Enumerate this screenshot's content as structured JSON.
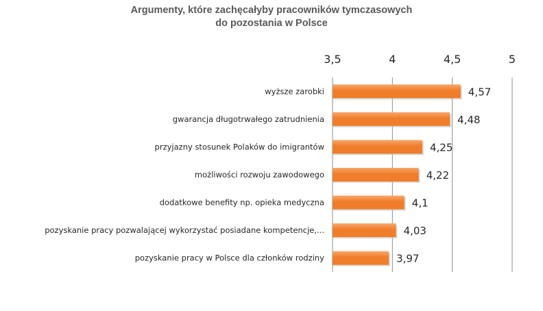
{
  "chart_data": {
    "type": "bar",
    "orientation": "horizontal",
    "title_lines": [
      "Argumenty, które zachęcałyby pracowników tymczasowych",
      "do pozostania w Polsce"
    ],
    "xlim": [
      3.5,
      5
    ],
    "x_ticks": [
      "3,5",
      "4",
      "4,5",
      "5"
    ],
    "x_tick_values": [
      3.5,
      4,
      4.5,
      5
    ],
    "x_axis_position": "top",
    "grid": true,
    "categories": [
      "wyższe zarobki",
      "gwarancja długotrwałego zatrudnienia",
      "przyjazny stosunek Polaków do imigrantów",
      "możliwości rozwoju zawodowego",
      "dodatkowe benefity np. opieka medyczna",
      "pozyskanie pracy pozwalającej wykorzystać posiadane kompetencje,...",
      "pozyskanie pracy w Polsce dla członków rodziny"
    ],
    "values": [
      4.57,
      4.48,
      4.25,
      4.22,
      4.1,
      4.03,
      3.97
    ],
    "value_labels": [
      "4,57",
      "4,48",
      "4,25",
      "4,22",
      "4,1",
      "4,03",
      "3,97"
    ],
    "bar_color": "#f07d2a",
    "bar_highlight": "#f9a66a"
  }
}
